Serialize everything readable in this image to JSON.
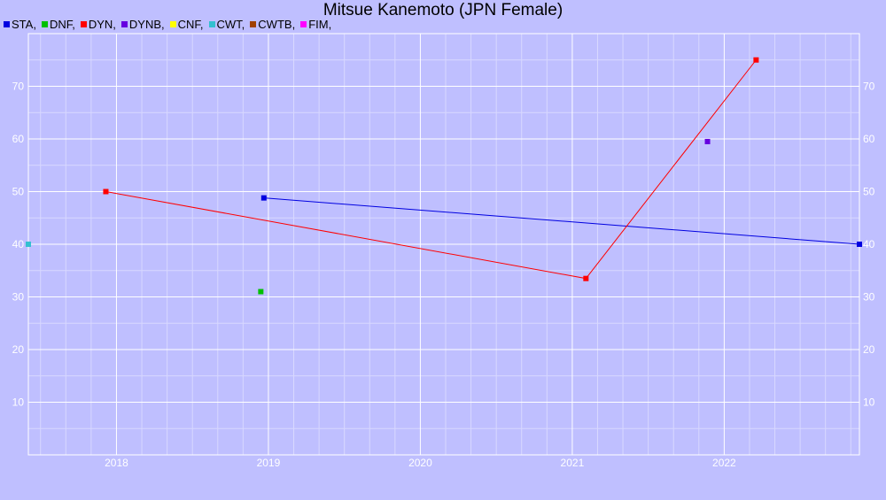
{
  "chart_data": {
    "type": "line",
    "title": "Mitsue Kanemoto (JPN Female)",
    "xlabel": "",
    "ylabel": "",
    "xlim": [
      2017.42,
      2022.89
    ],
    "ylim": [
      0,
      80
    ],
    "grid": true,
    "legend_position": "top-left",
    "legend": [
      {
        "label": "STA,",
        "color": "#0000e0"
      },
      {
        "label": "DNF,",
        "color": "#00c000"
      },
      {
        "label": "DYN,",
        "color": "#ff0000"
      },
      {
        "label": "DYNB,",
        "color": "#6600e0"
      },
      {
        "label": "CNF,",
        "color": "#ffff00"
      },
      {
        "label": "CWT,",
        "color": "#33c0d0"
      },
      {
        "label": "CWTB,",
        "color": "#a04000"
      },
      {
        "label": "FIM,",
        "color": "#ff00ff"
      }
    ],
    "x_ticks": [
      {
        "value": 2018,
        "label": "2018"
      },
      {
        "value": 2019,
        "label": "2019"
      },
      {
        "value": 2020,
        "label": "2020"
      },
      {
        "value": 2021,
        "label": "2021"
      },
      {
        "value": 2022,
        "label": "2022"
      }
    ],
    "y_ticks": [
      {
        "value": 10,
        "label": "10"
      },
      {
        "value": 20,
        "label": "20"
      },
      {
        "value": 30,
        "label": "30"
      },
      {
        "value": 40,
        "label": "40"
      },
      {
        "value": 50,
        "label": "50"
      },
      {
        "value": 60,
        "label": "60"
      },
      {
        "value": 70,
        "label": "70"
      }
    ],
    "series": [
      {
        "name": "STA",
        "color": "#0000e0",
        "line": true,
        "points": [
          [
            2018.97,
            48.8
          ],
          [
            2022.89,
            40
          ]
        ]
      },
      {
        "name": "DNF",
        "color": "#00c000",
        "line": false,
        "points": [
          [
            2018.95,
            31
          ]
        ]
      },
      {
        "name": "DYN",
        "color": "#ff0000",
        "line": true,
        "points": [
          [
            2017.93,
            50
          ],
          [
            2021.09,
            33.5
          ],
          [
            2022.21,
            75
          ]
        ]
      },
      {
        "name": "DYNB",
        "color": "#6600e0",
        "line": false,
        "points": [
          [
            2021.89,
            59.5
          ]
        ]
      },
      {
        "name": "CWT",
        "color": "#33c0d0",
        "line": false,
        "points": [
          [
            2017.42,
            40
          ]
        ]
      }
    ]
  }
}
